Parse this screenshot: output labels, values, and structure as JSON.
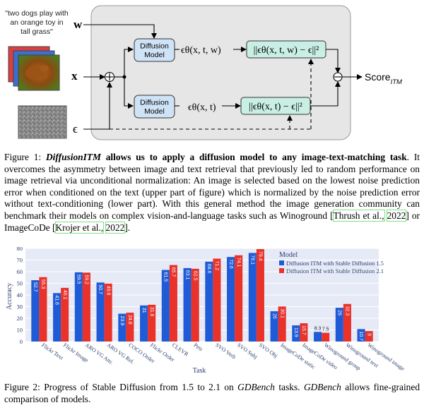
{
  "figure1": {
    "prompt_text": "\"two dogs play with an orange toy in tall grass\"",
    "prompt_lines": [
      "\"two dogs play with",
      "an orange toy in",
      "tall grass\""
    ],
    "label_w": "w",
    "label_x": "x",
    "label_eps": "ϵ",
    "diffusion_top": [
      "Diffusion",
      "Model"
    ],
    "diffusion_bottom": [
      "Diffusion",
      "Model"
    ],
    "eps_top": "ϵθ(x, t, w)",
    "eps_bottom": "ϵθ(x, t)",
    "loss_top": "||ϵθ(x, t, w) − ϵ||²",
    "loss_bottom": "||ϵθ(x, t) − ϵ||²",
    "score_label": "Score",
    "score_sub": "ITM",
    "colors": {
      "panel": "#e6e6e6",
      "diffusion_box": "#cfe3f7",
      "loss_box": "#c9efe4"
    }
  },
  "caption1": {
    "prefix": "Figure 1: ",
    "title_italic": "DiffusionITM",
    "title_bold": " allows us to apply a diffusion model to any image-text-matching task",
    "body": ". It overcomes the asymmetry between image and text retrieval that previously led to random performance on image retrieval via unconditional normalization: An image is selected based on the lowest noise prediction error when conditioned on the text (upper part of figure) which is normalized by the noise prediction error without text-conditioning (lower part). With this general method the image generation community can benchmark their models on complex vision-and-language tasks such as Winoground ",
    "cite1_open": "[",
    "cite1": "Thrush et al.,",
    "cite1_year": "2022",
    "cite1_close": "]",
    "mid": " or ImageCoDe ",
    "cite2_open": "[",
    "cite2": "Krojer et al.,",
    "cite2_year": "2022",
    "cite2_close": "]",
    "end": "."
  },
  "chart_data": {
    "type": "bar",
    "xlabel": "Task",
    "ylabel": "Accuracy",
    "ylim": [
      0,
      80
    ],
    "yticks": [
      0,
      10,
      20,
      30,
      40,
      50,
      60,
      70,
      80
    ],
    "legend_title": "Model",
    "legend_placement": "top-right",
    "grid": true,
    "categories": [
      "Flickr Text",
      "Flickr Image",
      "ARO VG Attr.",
      "ARO VG Rel.",
      "COCO Order",
      "Flickr Order",
      "CLEVR",
      "Pets",
      "SVO Verb",
      "SVO Subj",
      "SVO Obj",
      "ImageCoDe static",
      "ImageCoDe video",
      "Winoground group",
      "Winoground text",
      "Winoground image"
    ],
    "series": [
      {
        "name": "Diffusion ITM with Stable Diffusion 1.5",
        "color": "#1f5bd6",
        "values": [
          52.7,
          41.6,
          59.5,
          50.7,
          23.9,
          31,
          61.5,
          63.1,
          68.6,
          72.6,
          76.1,
          26,
          13.9,
          8.3,
          29,
          10.7
        ],
        "labels": [
          "52.7",
          "41.6",
          "59.5",
          "50.7",
          "23.9",
          "31",
          "61.5",
          "63.1",
          "68.6",
          "72.6",
          "76.1",
          "26",
          "13.9",
          "8.3",
          "29",
          "10.7"
        ]
      },
      {
        "name": "Diffusion ITM with Stable Diffusion 2.1",
        "color": "#e8322a",
        "values": [
          55.3,
          46.1,
          59.2,
          49.8,
          24.8,
          31.6,
          65.7,
          62.5,
          71.2,
          74.1,
          79.4,
          30.1,
          15.7,
          7.5,
          32.3,
          9
        ],
        "labels": [
          "55.3",
          "46.1",
          "59.2",
          "49.8",
          "24.8",
          "31.6",
          "65.7",
          "62.5",
          "71.2",
          "74.1",
          "79.4",
          "30.1",
          "15.7",
          "7.5",
          "32.3",
          "9"
        ]
      }
    ]
  },
  "caption2": {
    "prefix": "Figure 2: Progress of Stable Diffusion from 1.5 to 2.1 on ",
    "bench1": "GDBench",
    "mid": " tasks. ",
    "bench2": "GDBench",
    "end": " allows fine-grained comparison of models."
  }
}
